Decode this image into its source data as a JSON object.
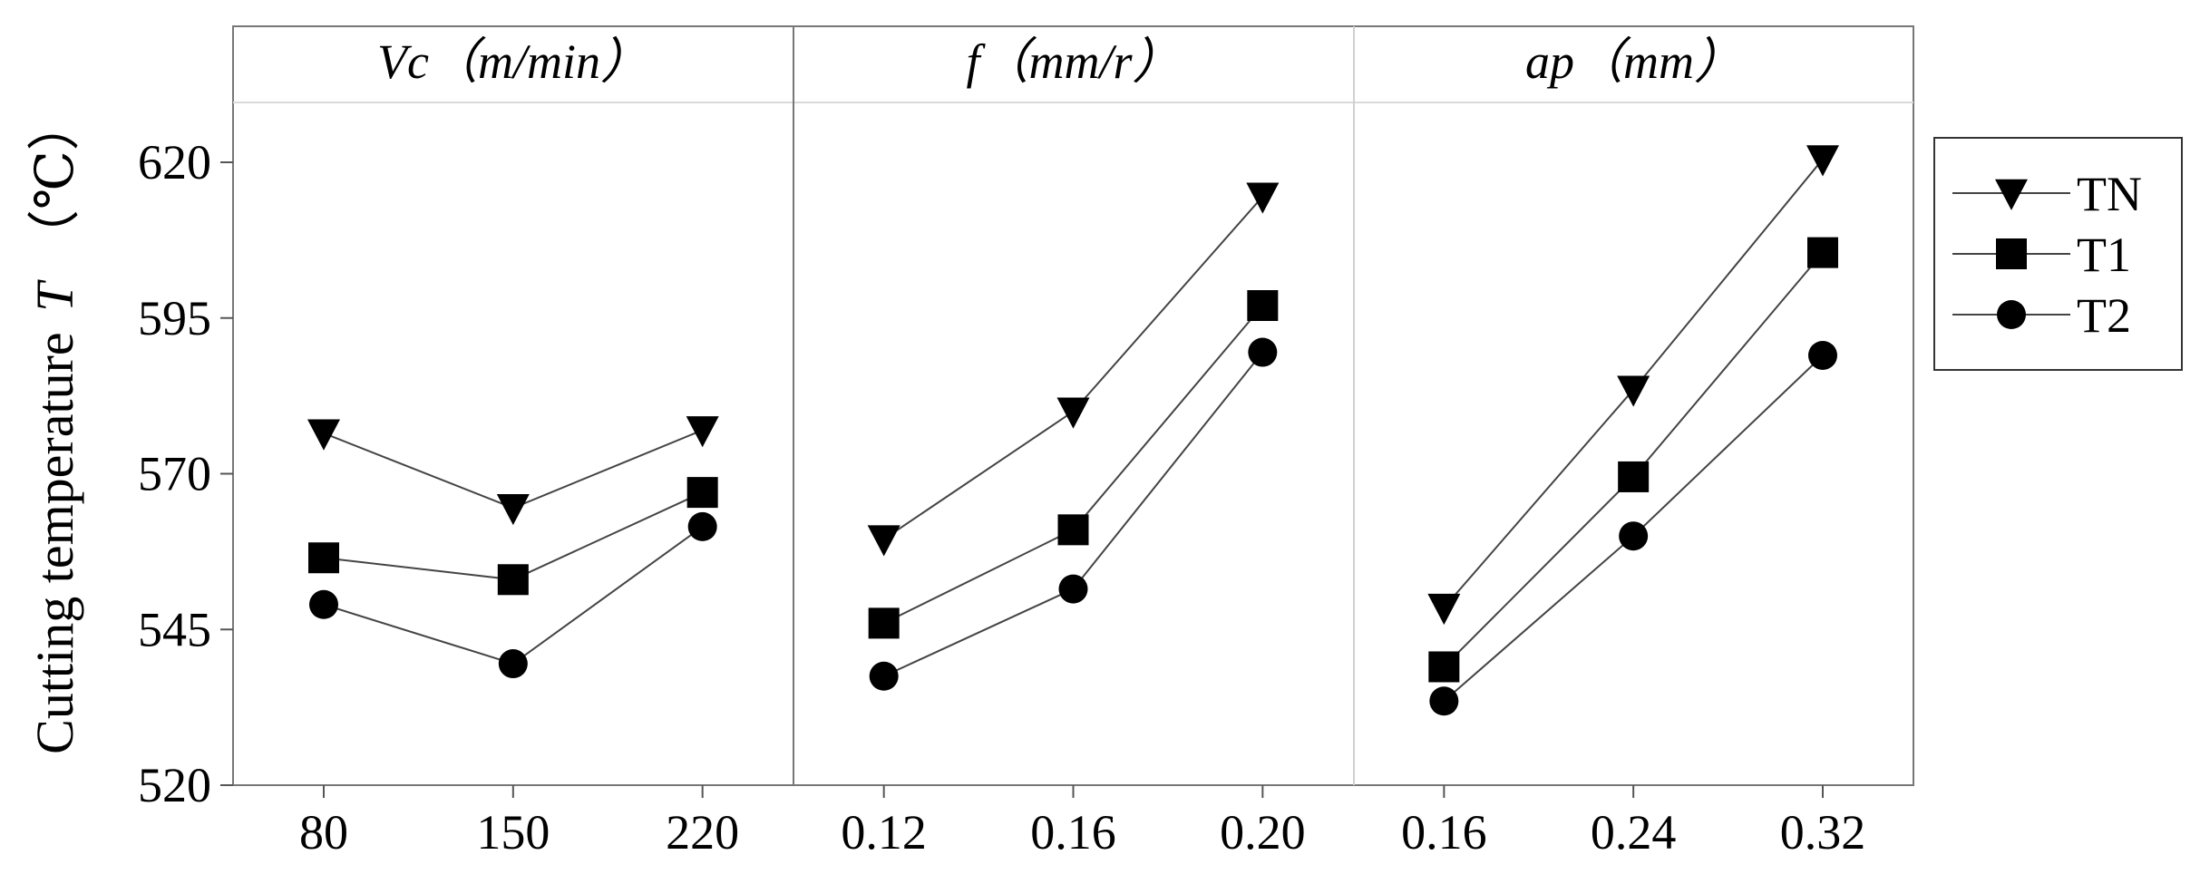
{
  "chart_data": {
    "type": "line",
    "ylabel": "Cutting temperature",
    "ylabel_symbol": "T",
    "ylabel_unit": "（℃）",
    "ylim": [
      520,
      630
    ],
    "yticks": [
      "520",
      "545",
      "570",
      "595",
      "620"
    ],
    "legend_position": "right",
    "legend": [
      "TN",
      "T1",
      "T2"
    ],
    "panels": [
      {
        "title": "Vc（m/min）",
        "categories": [
          "80",
          "150",
          "220"
        ],
        "series": [
          {
            "name": "TN",
            "marker": "triangle-down",
            "values": [
              576.5,
              564.5,
              577
            ]
          },
          {
            "name": "T1",
            "marker": "square",
            "values": [
              556.5,
              553,
              567
            ]
          },
          {
            "name": "T2",
            "marker": "circle",
            "values": [
              549,
              539.5,
              561.5
            ]
          }
        ]
      },
      {
        "title": "f（mm/r）",
        "categories": [
          "0.12",
          "0.16",
          "0.20"
        ],
        "series": [
          {
            "name": "TN",
            "marker": "triangle-down",
            "values": [
              559.5,
              580,
              614.5
            ]
          },
          {
            "name": "T1",
            "marker": "square",
            "values": [
              546,
              561,
              597
            ]
          },
          {
            "name": "T2",
            "marker": "circle",
            "values": [
              537.5,
              551.5,
              589.5
            ]
          }
        ]
      },
      {
        "title": "ap（mm）",
        "categories": [
          "0.16",
          "0.24",
          "0.32"
        ],
        "series": [
          {
            "name": "TN",
            "marker": "triangle-down",
            "values": [
              548.5,
              583.5,
              620.5
            ]
          },
          {
            "name": "T1",
            "marker": "square",
            "values": [
              539,
              569.5,
              605.5
            ]
          },
          {
            "name": "T2",
            "marker": "circle",
            "values": [
              533.5,
              560,
              589
            ]
          }
        ]
      }
    ]
  }
}
